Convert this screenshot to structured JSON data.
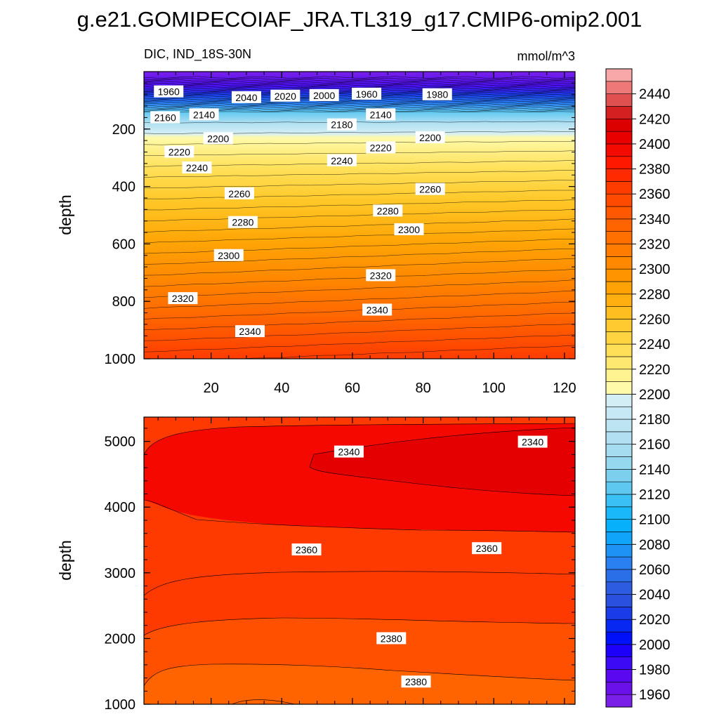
{
  "title": "g.e21.GOMIPECOIAF_JRA.TL319_g17.CMIP6-omip2.001",
  "chart_data": {
    "type": "contour",
    "title": "g.e21.GOMIPECOIAF_JRA.TL319_g17.CMIP6-omip2.001",
    "variable": "DIC, IND_18S-30N",
    "units": "mmol/m^3",
    "colorbar": {
      "levels": [
        1950,
        1960,
        1970,
        1980,
        1990,
        2000,
        2010,
        2020,
        2030,
        2040,
        2050,
        2060,
        2070,
        2080,
        2090,
        2100,
        2110,
        2120,
        2130,
        2140,
        2150,
        2160,
        2170,
        2180,
        2190,
        2200,
        2210,
        2220,
        2230,
        2240,
        2250,
        2260,
        2270,
        2280,
        2290,
        2300,
        2310,
        2320,
        2330,
        2340,
        2350,
        2360,
        2370,
        2380,
        2390,
        2400,
        2410,
        2420,
        2430,
        2440,
        2450
      ],
      "labels": [
        "1960",
        "1980",
        "2000",
        "2020",
        "2040",
        "2060",
        "2080",
        "2100",
        "2120",
        "2140",
        "2160",
        "2180",
        "2200",
        "2220",
        "2240",
        "2260",
        "2280",
        "2300",
        "2320",
        "2340",
        "2360",
        "2380",
        "2400",
        "2420",
        "2440"
      ],
      "colors": [
        "#7a1fe8",
        "#6a10e8",
        "#5a08f0",
        "#3c0af5",
        "#1c00fa",
        "#0010f8",
        "#0628f0",
        "#1a3ce8",
        "#2a50e0",
        "#2e5ce0",
        "#2a6ee8",
        "#2a80f0",
        "#1f92f5",
        "#10a4fa",
        "#06b0fb",
        "#1ab8f8",
        "#3ac0f5",
        "#5ec8f0",
        "#7cd0ee",
        "#96d8ee",
        "#a6dcf0",
        "#b2e0f2",
        "#bce4f2",
        "#c6e8f4",
        "#d4eef6",
        "#fffaaa",
        "#fff290",
        "#ffe870",
        "#ffde58",
        "#ffd440",
        "#ffca30",
        "#ffbe20",
        "#ffb010",
        "#ffa206",
        "#ff9400",
        "#ff8800",
        "#ff7c00",
        "#ff7000",
        "#ff6400",
        "#ff5800",
        "#ff4a00",
        "#ff3c00",
        "#ff2a00",
        "#ff1800",
        "#f40a00",
        "#e80000",
        "#dc0000",
        "#d42020",
        "#e05050",
        "#ee7878",
        "#f8a8a8"
      ]
    },
    "panels": [
      {
        "name": "upper",
        "ylabel": "depth",
        "ylim": [
          1000,
          0
        ],
        "yticks": [
          "200",
          "400",
          "600",
          "800",
          "1000"
        ],
        "xlim": [
          1,
          123
        ],
        "xticks": [
          "20",
          "40",
          "60",
          "80",
          "100",
          "120"
        ],
        "contour_labels": [
          {
            "text": "1960",
            "x": 8,
            "y": 70
          },
          {
            "text": "2040",
            "x": 30,
            "y": 90
          },
          {
            "text": "2020",
            "x": 41,
            "y": 85
          },
          {
            "text": "2000",
            "x": 52,
            "y": 83
          },
          {
            "text": "1960",
            "x": 64,
            "y": 78
          },
          {
            "text": "1980",
            "x": 84,
            "y": 80
          },
          {
            "text": "2160",
            "x": 7,
            "y": 160
          },
          {
            "text": "2140",
            "x": 18,
            "y": 150
          },
          {
            "text": "2140",
            "x": 68,
            "y": 150
          },
          {
            "text": "2180",
            "x": 57,
            "y": 185
          },
          {
            "text": "2200",
            "x": 22,
            "y": 233
          },
          {
            "text": "2200",
            "x": 82,
            "y": 230
          },
          {
            "text": "2220",
            "x": 11,
            "y": 280
          },
          {
            "text": "2220",
            "x": 68,
            "y": 265
          },
          {
            "text": "2240",
            "x": 16,
            "y": 335
          },
          {
            "text": "2240",
            "x": 57,
            "y": 310
          },
          {
            "text": "2260",
            "x": 28,
            "y": 425
          },
          {
            "text": "2260",
            "x": 82,
            "y": 410
          },
          {
            "text": "2280",
            "x": 29,
            "y": 525
          },
          {
            "text": "2280",
            "x": 70,
            "y": 485
          },
          {
            "text": "2300",
            "x": 25,
            "y": 640
          },
          {
            "text": "2300",
            "x": 76,
            "y": 550
          },
          {
            "text": "2320",
            "x": 12,
            "y": 790
          },
          {
            "text": "2320",
            "x": 68,
            "y": 710
          },
          {
            "text": "2340",
            "x": 31,
            "y": 905
          },
          {
            "text": "2340",
            "x": 67,
            "y": 830
          }
        ]
      },
      {
        "name": "lower",
        "ylabel": "depth",
        "ylim": [
          5370,
          1000
        ],
        "yticks": [
          "1000",
          "2000",
          "3000",
          "4000",
          "5000"
        ],
        "xlim": [
          1,
          123
        ],
        "xticks": [],
        "contour_labels": [
          {
            "text": "2380",
            "x": 78,
            "y": 1340
          },
          {
            "text": "2380",
            "x": 71,
            "y": 2000
          },
          {
            "text": "2360",
            "x": 47,
            "y": 3350
          },
          {
            "text": "2360",
            "x": 98,
            "y": 3370
          },
          {
            "text": "2340",
            "x": 59,
            "y": 4840
          },
          {
            "text": "2340",
            "x": 111,
            "y": 4990
          }
        ]
      }
    ]
  }
}
